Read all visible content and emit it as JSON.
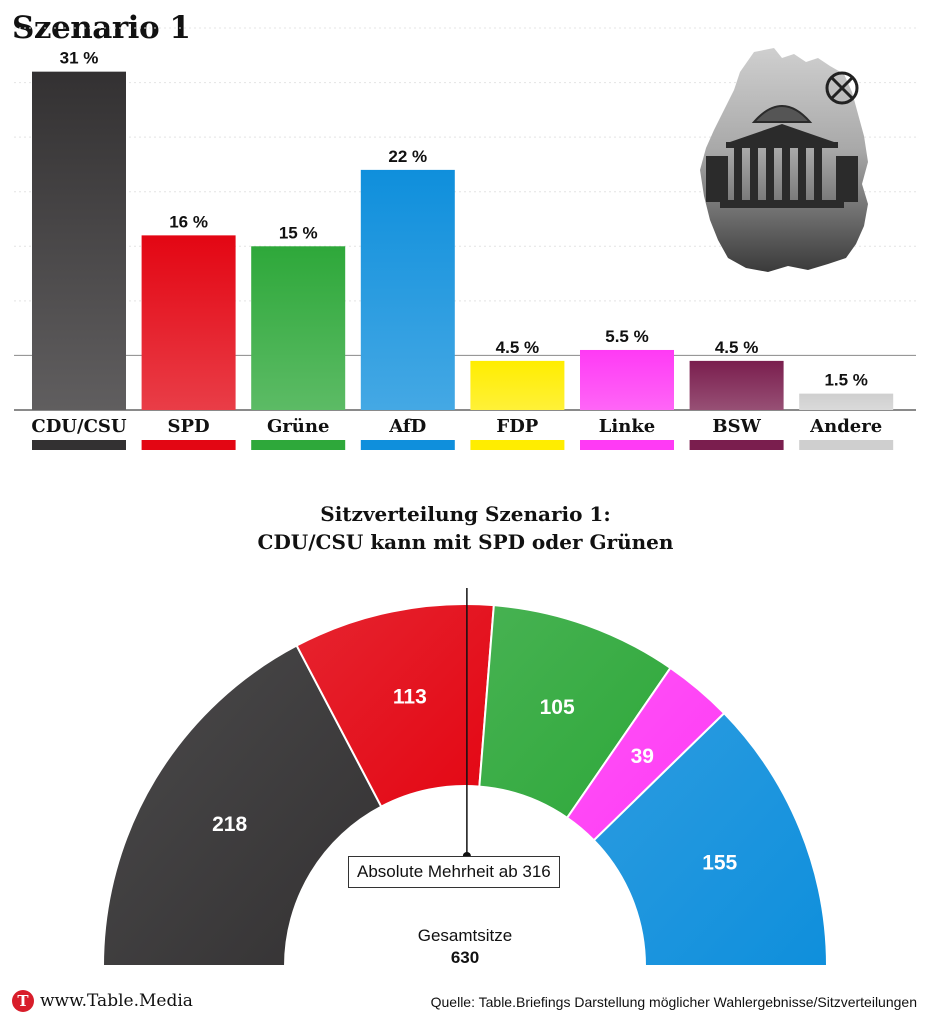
{
  "title": "Szenario 1",
  "colors": {
    "CDU/CSU": "#333132",
    "SPD": "#e30613",
    "Grüne": "#2ea83a",
    "AfD": "#0f8fdc",
    "FDP": "#ffed00",
    "Linke": "#ff3af5",
    "BSW": "#7a1e4e",
    "Andere": "#cfcfcf"
  },
  "chart_data": [
    {
      "type": "bar",
      "categories": [
        "CDU/CSU",
        "SPD",
        "Grüne",
        "AfD",
        "FDP",
        "Linke",
        "BSW",
        "Andere"
      ],
      "values": [
        31,
        16,
        15,
        22,
        4.5,
        5.5,
        4.5,
        1.5
      ],
      "data_labels": [
        "31 %",
        "16 %",
        "15 %",
        "22 %",
        "4.5 %",
        "5.5 %",
        "4.5 %",
        "1.5 %"
      ],
      "ylim": [
        0,
        35
      ],
      "grid": true,
      "threshold_line": 5
    },
    {
      "type": "parliament-semicircle",
      "title": "Sitzverteilung Szenario 1:",
      "subtitle": "CDU/CSU kann mit SPD oder Grünen",
      "categories": [
        "CDU/CSU",
        "SPD",
        "Grüne",
        "Linke",
        "AfD"
      ],
      "values": [
        218,
        113,
        105,
        39,
        155
      ],
      "total": 630,
      "majority": 316,
      "majority_label": "Absolute Mehrheit ab 316",
      "total_label": "Gesamtsitze",
      "total_value": "630"
    }
  ],
  "map_icon": "germany-reichstag-map-icon",
  "ballot_icon": "ballot-cross-icon",
  "footer": {
    "brand": "www.Table.Media",
    "brand_logo_letter": "T",
    "source": "Quelle: Table.Briefings Darstellung möglicher Wahlergebnisse/Sitzverteilungen"
  }
}
